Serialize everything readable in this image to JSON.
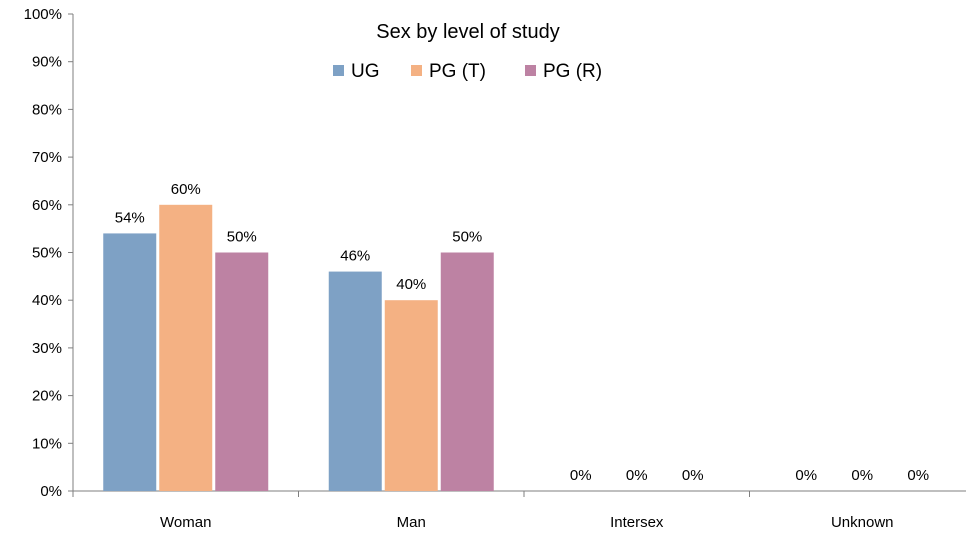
{
  "chart_data": {
    "type": "bar",
    "title": "Sex by level of study",
    "categories": [
      "Woman",
      "Man",
      "Intersex",
      "Unknown"
    ],
    "series": [
      {
        "name": "UG",
        "color": "#7ea1c5",
        "values": [
          54,
          46,
          0,
          0
        ],
        "labels": [
          "54%",
          "46%",
          "0%",
          "0%"
        ]
      },
      {
        "name": "PG (T)",
        "color": "#f4b183",
        "values": [
          60,
          40,
          0,
          0
        ],
        "labels": [
          "60%",
          "40%",
          "0%",
          "0%"
        ]
      },
      {
        "name": "PG (R)",
        "color": "#bd82a3",
        "values": [
          50,
          50,
          0,
          0
        ],
        "labels": [
          "50%",
          "50%",
          "0%",
          "0%"
        ]
      }
    ],
    "ylim": [
      0,
      100
    ],
    "yticks": [
      "0%",
      "10%",
      "20%",
      "30%",
      "40%",
      "50%",
      "60%",
      "70%",
      "80%",
      "90%",
      "100%"
    ],
    "xlabel": "",
    "ylabel": "",
    "grid": false,
    "legend_position": "top"
  }
}
